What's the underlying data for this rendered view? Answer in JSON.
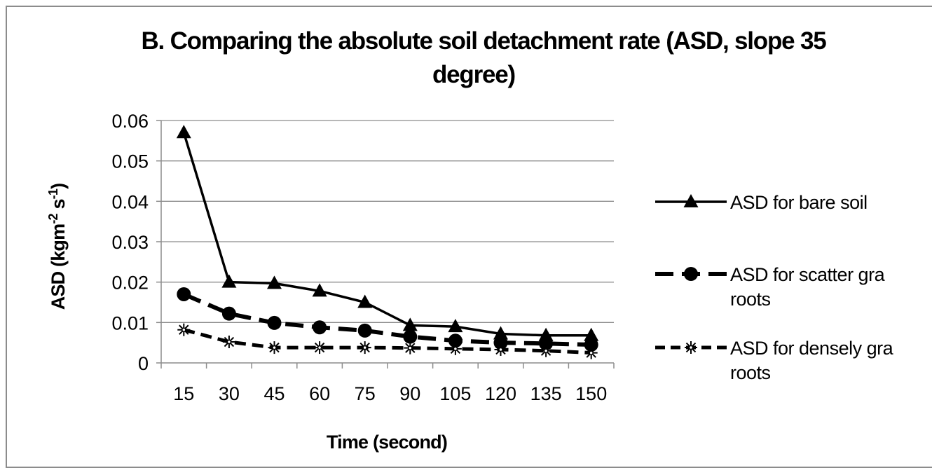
{
  "chart_data": {
    "type": "line",
    "title_lines": [
      "B. Comparing the absolute soil detachment rate (ASD, slope 35",
      "degree)"
    ],
    "xlabel": "Time (second)",
    "ylabel": {
      "base": "ASD (kgm",
      "sup1": "-2",
      "mid": " s",
      "sup2": "-1",
      "end": ")"
    },
    "categories": [
      "15",
      "30",
      "45",
      "60",
      "75",
      "90",
      "105",
      "120",
      "135",
      "150"
    ],
    "y_ticks": [
      "0",
      "0.01",
      "0.02",
      "0.03",
      "0.04",
      "0.05",
      "0.06"
    ],
    "ylim": [
      0,
      0.06
    ],
    "grid": true,
    "legend_position": "right",
    "series": [
      {
        "name_lines": [
          "ASD for bare soil"
        ],
        "line_style": "solid",
        "marker": "triangle",
        "values": [
          0.057,
          0.02,
          0.0197,
          0.0178,
          0.015,
          0.0093,
          0.009,
          0.0072,
          0.0068,
          0.0068
        ]
      },
      {
        "name_lines": [
          "ASD for scatter gra",
          "roots"
        ],
        "line_style": "long-dash",
        "marker": "circle",
        "values": [
          0.017,
          0.0122,
          0.0099,
          0.0088,
          0.008,
          0.0065,
          0.0055,
          0.005,
          0.0048,
          0.0045
        ]
      },
      {
        "name_lines": [
          "ASD for densely gra",
          "roots"
        ],
        "line_style": "dash",
        "marker": "star",
        "values": [
          0.0082,
          0.0052,
          0.0038,
          0.0038,
          0.0038,
          0.0037,
          0.0035,
          0.0033,
          0.003,
          0.0025
        ]
      }
    ],
    "colors": {
      "line": "#000000",
      "grid": "#8c8c8c",
      "axis": "#8c8c8c",
      "frame": "#8c8c8c"
    }
  }
}
